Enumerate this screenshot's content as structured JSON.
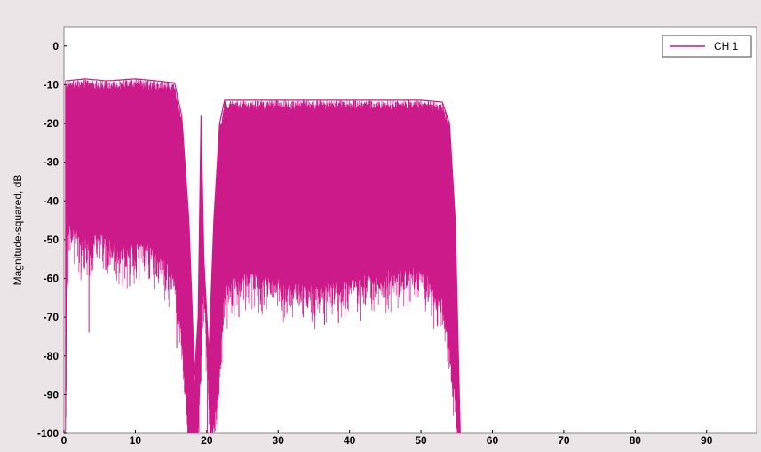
{
  "chart_data": {
    "type": "line",
    "title": "",
    "xlabel": "",
    "ylabel": "Magnitude-squared, dB",
    "xlim": [
      0,
      97
    ],
    "ylim": [
      -100,
      5
    ],
    "x_ticks": [
      0,
      10,
      20,
      30,
      40,
      50,
      60,
      70,
      80,
      90
    ],
    "y_ticks": [
      0,
      -10,
      -20,
      -30,
      -40,
      -50,
      -60,
      -70,
      -80,
      -90,
      -100
    ],
    "grid": false,
    "legend_position": "top-right",
    "series": [
      {
        "name": "CH 1",
        "color": "#cc1a8a",
        "description_type": "dense_noise_band",
        "upper_envelope": [
          [
            0.2,
            -9
          ],
          [
            3,
            -8.5
          ],
          [
            6,
            -9
          ],
          [
            10,
            -8.5
          ],
          [
            13,
            -9
          ],
          [
            15.5,
            -9.5
          ],
          [
            16.5,
            -18
          ],
          [
            17.5,
            -45
          ],
          [
            18.3,
            -85
          ],
          [
            18.8,
            -70
          ],
          [
            19.2,
            -18
          ],
          [
            19.6,
            -55
          ],
          [
            20.3,
            -80
          ],
          [
            21,
            -45
          ],
          [
            21.8,
            -20
          ],
          [
            22.5,
            -14
          ],
          [
            30,
            -14
          ],
          [
            40,
            -14
          ],
          [
            50,
            -14
          ],
          [
            53,
            -14.5
          ],
          [
            54,
            -20
          ],
          [
            54.8,
            -45
          ],
          [
            55.5,
            -100
          ]
        ],
        "lower_envelope": [
          [
            0.2,
            -100
          ],
          [
            0.6,
            -45
          ],
          [
            3,
            -50
          ],
          [
            5,
            -48
          ],
          [
            8,
            -52
          ],
          [
            11,
            -50
          ],
          [
            14,
            -55
          ],
          [
            15.5,
            -58
          ],
          [
            16.5,
            -75
          ],
          [
            17.5,
            -100
          ],
          [
            18.8,
            -100
          ],
          [
            19.6,
            -60
          ],
          [
            20.5,
            -100
          ],
          [
            21.5,
            -90
          ],
          [
            22.5,
            -62
          ],
          [
            25,
            -58
          ],
          [
            30,
            -60
          ],
          [
            35,
            -62
          ],
          [
            40,
            -60
          ],
          [
            45,
            -58
          ],
          [
            50,
            -57
          ],
          [
            53,
            -65
          ],
          [
            54.5,
            -85
          ],
          [
            55.5,
            -100
          ]
        ],
        "deep_spikes": [
          [
            3.5,
            -74
          ],
          [
            7,
            -58
          ],
          [
            9.2,
            -62
          ],
          [
            12,
            -60
          ],
          [
            15.8,
            -78
          ],
          [
            18.3,
            -100
          ],
          [
            20.1,
            -100
          ],
          [
            24.5,
            -70
          ],
          [
            28,
            -67
          ],
          [
            33.5,
            -70
          ],
          [
            36.5,
            -72
          ],
          [
            39,
            -66
          ],
          [
            41.5,
            -71
          ],
          [
            45,
            -65
          ],
          [
            48.5,
            -66
          ],
          [
            51,
            -66
          ],
          [
            53,
            -72
          ]
        ]
      }
    ]
  }
}
